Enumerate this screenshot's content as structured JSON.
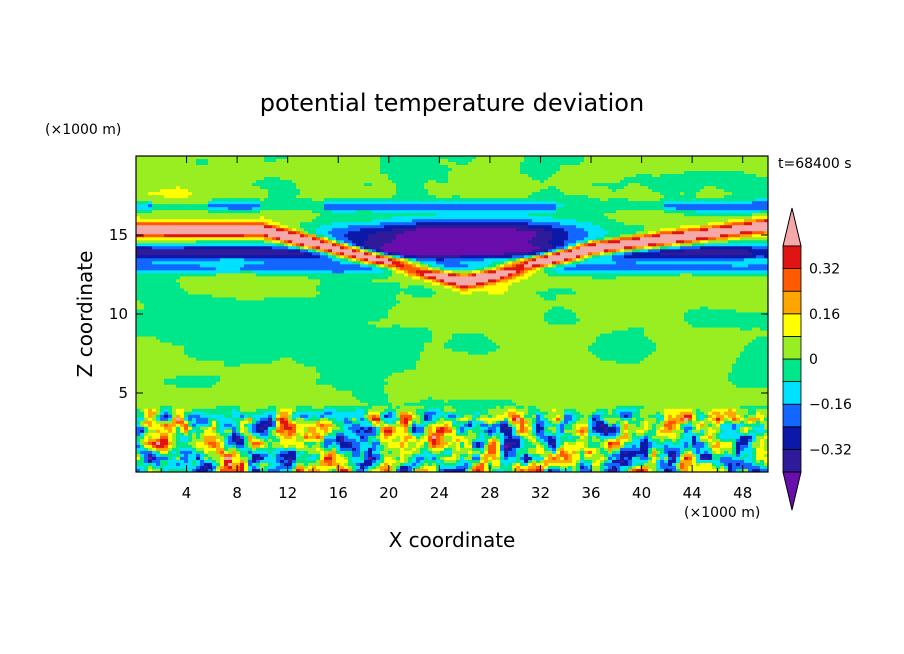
{
  "chart_data": {
    "type": "heatmap",
    "title": "potential temperature deviation",
    "xlabel": "X coordinate",
    "ylabel": "Z coordinate",
    "x_unit": "(×1000 m)",
    "y_unit": "(×1000 m)",
    "time_label": "t=68400 s",
    "xlim": [
      0,
      50
    ],
    "ylim": [
      0,
      20
    ],
    "x_ticks": [
      4,
      8,
      12,
      16,
      20,
      24,
      28,
      32,
      36,
      40,
      44,
      48
    ],
    "x_tick_labels": [
      "4",
      "8",
      "12",
      "16",
      "20",
      "24",
      "28",
      "32",
      "36",
      "40",
      "44",
      "48"
    ],
    "y_ticks": [
      5,
      10,
      15
    ],
    "y_tick_labels": [
      "5",
      "10",
      "15"
    ],
    "colorbar": {
      "levels": [
        -0.4,
        -0.32,
        -0.24,
        -0.16,
        -0.08,
        0,
        0.08,
        0.16,
        0.24,
        0.32,
        0.4
      ],
      "tick_values": [
        -0.32,
        -0.16,
        0,
        0.16,
        0.32
      ],
      "tick_labels": [
        "−0.32",
        "−0.16",
        "0",
        "0.16",
        "0.32"
      ],
      "colors": [
        "#6a0dad",
        "#2e1a9a",
        "#0b18a8",
        "#1366ff",
        "#00e0ff",
        "#00e68a",
        "#99ee22",
        "#ffff00",
        "#ffa500",
        "#ff5a00",
        "#e01414",
        "#f4a8a8"
      ],
      "extend": "both"
    },
    "grid": false,
    "legend": "colorbar-right"
  }
}
